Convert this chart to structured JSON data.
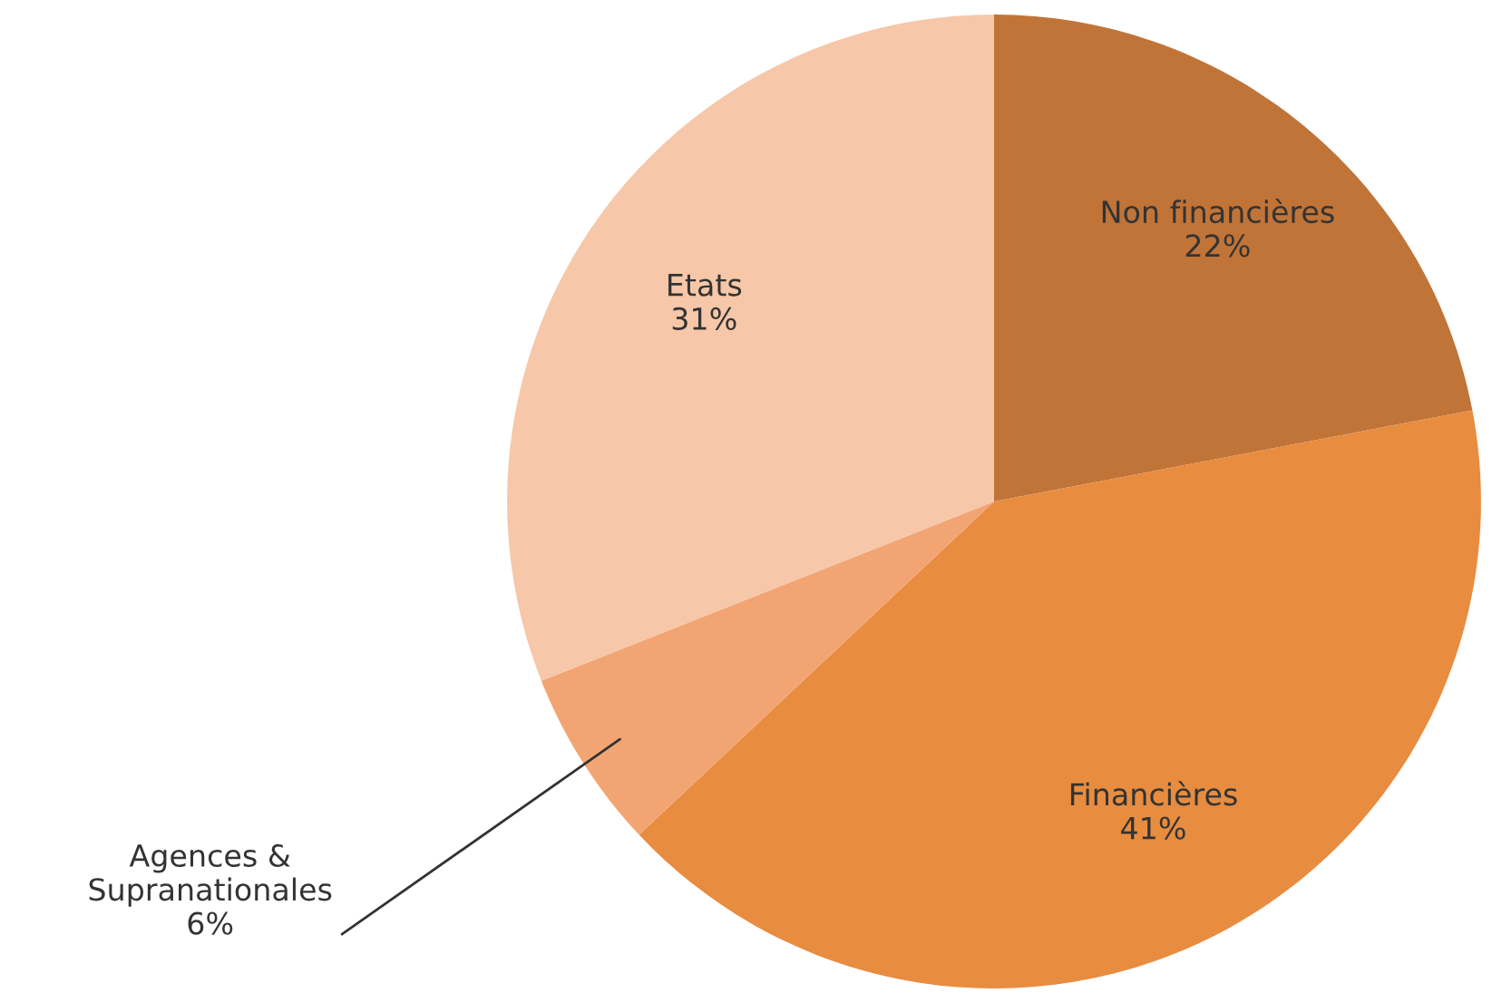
{
  "chart_data": {
    "type": "pie",
    "categories": [
      "Non financières",
      "Financières",
      "Agences & Supranationales",
      "Etats"
    ],
    "values": [
      22,
      41,
      6,
      31
    ],
    "colors": [
      "#c07438",
      "#e88c40",
      "#f2a573",
      "#f6c7a8"
    ],
    "value_labels": [
      "22%",
      "41%",
      "6%",
      "31%"
    ]
  }
}
